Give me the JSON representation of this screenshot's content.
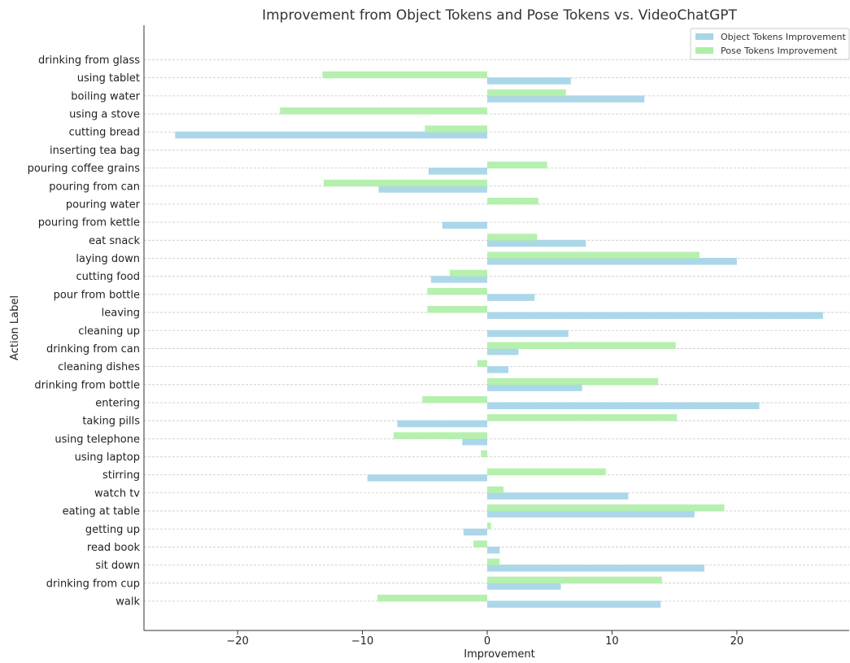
{
  "chart_data": {
    "type": "bar",
    "orientation": "horizontal",
    "title": "Improvement from Object Tokens and Pose Tokens vs. VideoChatGPT",
    "xlabel": "Improvement",
    "ylabel": "Action Label",
    "xlim": [
      -27.5,
      29
    ],
    "xticks": [
      -20,
      -10,
      0,
      10,
      20
    ],
    "xtick_labels": [
      "−20",
      "−10",
      "0",
      "10",
      "20"
    ],
    "grid": "horizontal dashed",
    "legend_position": "top-right",
    "categories": [
      "walk",
      "drinking from cup",
      "sit down",
      "read book",
      "getting up",
      "eating at table",
      "watch tv",
      "stirring",
      "using laptop",
      "using telephone",
      "taking pills",
      "entering",
      "drinking from bottle",
      "cleaning dishes",
      "drinking from can",
      "cleaning up",
      "leaving",
      "pour from bottle",
      "cutting food",
      "laying down",
      "eat snack",
      "pouring from kettle",
      "pouring water",
      "pouring from can",
      "pouring coffee grains",
      "inserting tea bag",
      "cutting bread",
      "using a stove",
      "boiling water",
      "using tablet",
      "drinking from glass"
    ],
    "series": [
      {
        "name": "Object Tokens Improvement",
        "color": "#a6d5e8",
        "values": [
          13.9,
          5.9,
          17.4,
          1.0,
          -1.9,
          16.6,
          11.3,
          -9.6,
          0,
          -2.0,
          -7.2,
          21.8,
          7.6,
          1.7,
          2.5,
          6.5,
          26.9,
          3.8,
          -4.5,
          20.0,
          7.9,
          -3.6,
          0,
          -8.7,
          -4.7,
          0,
          -25.0,
          0,
          12.6,
          6.7,
          0
        ]
      },
      {
        "name": "Pose Tokens Improvement",
        "color": "#aeeea6",
        "values": [
          -8.8,
          14.0,
          1.0,
          -1.1,
          0.3,
          19.0,
          1.3,
          9.5,
          -0.5,
          -7.5,
          15.2,
          -5.2,
          13.7,
          -0.8,
          15.1,
          0,
          -4.8,
          -4.8,
          -3.0,
          17.0,
          4.0,
          0,
          4.1,
          -13.1,
          4.8,
          0,
          -5.0,
          -16.6,
          6.3,
          -13.2,
          0
        ]
      }
    ]
  }
}
